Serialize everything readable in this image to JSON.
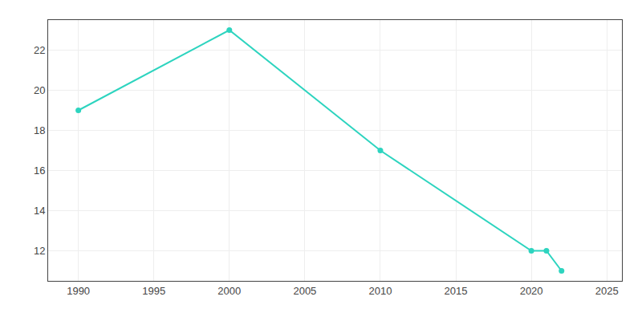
{
  "chart_data": {
    "type": "line",
    "x": [
      1990,
      2000,
      2010,
      2020,
      2021,
      2022
    ],
    "values": [
      19,
      23,
      17,
      12,
      12,
      11
    ],
    "color": "#2DD4BF",
    "marker": "circle",
    "xlim": [
      1988,
      2026
    ],
    "ylim": [
      10.5,
      23.5
    ],
    "xticks": [
      1990,
      1995,
      2000,
      2005,
      2010,
      2015,
      2020,
      2025
    ],
    "yticks": [
      12,
      14,
      16,
      18,
      20,
      22
    ],
    "grid": true
  }
}
